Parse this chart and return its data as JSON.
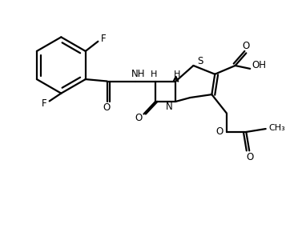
{
  "bg_color": "#ffffff",
  "line_color": "#000000",
  "bond_lw": 1.6,
  "figsize": [
    3.82,
    2.85
  ],
  "dpi": 100,
  "xlim": [
    0.0,
    7.8
  ],
  "ylim": [
    -0.5,
    5.2
  ]
}
